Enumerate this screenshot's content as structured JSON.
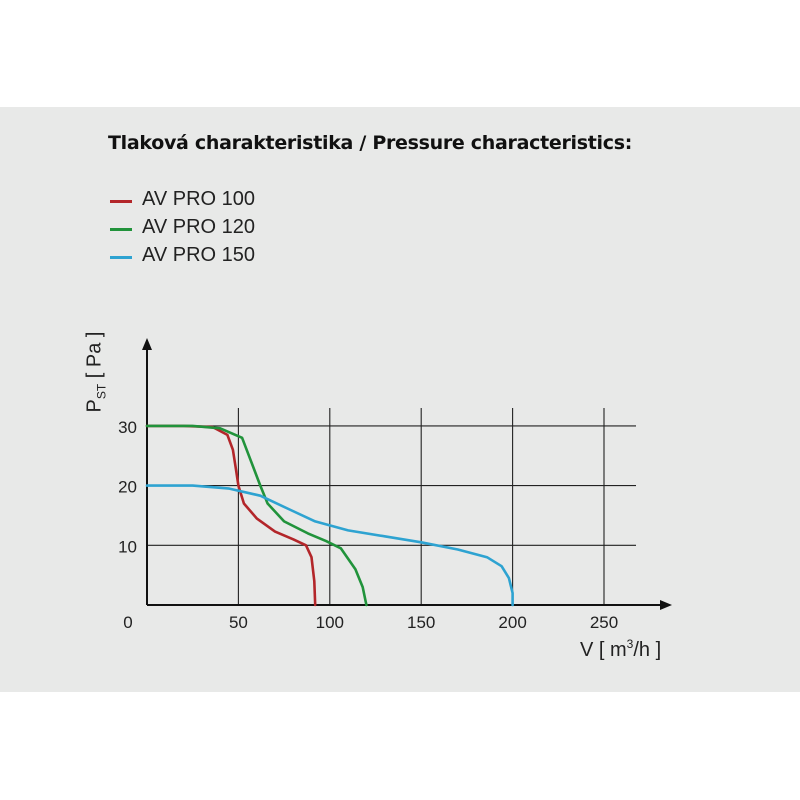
{
  "title": "Tlaková charakteristika / Pressure characteristics:",
  "colors": {
    "panel": "#e8e9e8",
    "axis": "#111111",
    "grid": "#222222"
  },
  "legend": {
    "items": [
      {
        "label": "AV PRO 100",
        "color": "#b3262a"
      },
      {
        "label": "AV PRO 120",
        "color": "#21933b"
      },
      {
        "label": "AV PRO 150",
        "color": "#2ea3d1"
      }
    ]
  },
  "axes": {
    "y_label_main": "P",
    "y_label_sub": "ST",
    "y_label_unit": "[ Pa ]",
    "x_label_pre": "V [ m",
    "x_label_sup": "3",
    "x_label_post": "/h ]"
  },
  "chart_data": {
    "type": "line",
    "title": "Tlaková charakteristika / Pressure characteristics:",
    "xlabel": "V [ m3/h ]",
    "ylabel": "PST [ Pa ]",
    "xlim": [
      0,
      280
    ],
    "ylim": [
      0,
      35
    ],
    "xticks": [
      0,
      50,
      100,
      150,
      200,
      250
    ],
    "yticks": [
      10,
      20,
      30
    ],
    "x_tick_labels": [
      "0",
      "50",
      "100",
      "150",
      "200",
      "250"
    ],
    "y_tick_labels": [
      "10",
      "20",
      "30"
    ],
    "grid": true,
    "legend_position": "top-left",
    "series": [
      {
        "name": "AV PRO 100",
        "color": "#b3262a",
        "points": [
          [
            0,
            30
          ],
          [
            20,
            30
          ],
          [
            36,
            29.8
          ],
          [
            44,
            28.5
          ],
          [
            47,
            26
          ],
          [
            48.5,
            23
          ],
          [
            50,
            20
          ],
          [
            53,
            17
          ],
          [
            60,
            14.5
          ],
          [
            70,
            12.3
          ],
          [
            80,
            11
          ],
          [
            87,
            10
          ],
          [
            90,
            8
          ],
          [
            91.5,
            4
          ],
          [
            92,
            0
          ]
        ]
      },
      {
        "name": "AV PRO 120",
        "color": "#21933b",
        "points": [
          [
            0,
            30
          ],
          [
            25,
            30
          ],
          [
            40,
            29.6
          ],
          [
            52,
            28
          ],
          [
            57,
            24
          ],
          [
            62,
            20
          ],
          [
            66,
            17
          ],
          [
            75,
            14
          ],
          [
            88,
            12
          ],
          [
            98,
            10.7
          ],
          [
            106,
            9.5
          ],
          [
            114,
            6
          ],
          [
            118,
            3
          ],
          [
            120,
            0
          ]
        ]
      },
      {
        "name": "AV PRO 150",
        "color": "#2ea3d1",
        "points": [
          [
            0,
            20
          ],
          [
            25,
            20
          ],
          [
            45,
            19.5
          ],
          [
            62,
            18.3
          ],
          [
            78,
            16
          ],
          [
            92,
            14
          ],
          [
            110,
            12.5
          ],
          [
            130,
            11.5
          ],
          [
            150,
            10.5
          ],
          [
            170,
            9.3
          ],
          [
            186,
            8
          ],
          [
            194,
            6.5
          ],
          [
            198,
            4.5
          ],
          [
            200,
            2
          ],
          [
            200,
            0
          ]
        ]
      }
    ]
  }
}
